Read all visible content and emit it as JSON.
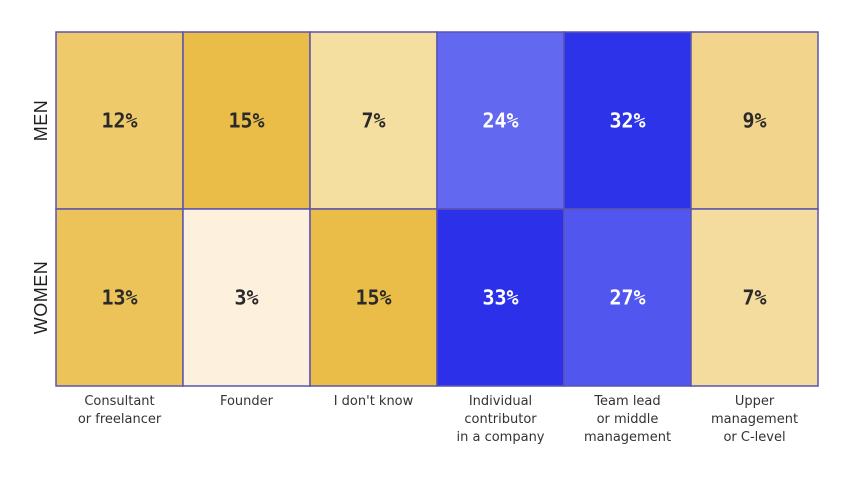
{
  "chart_data": {
    "type": "heatmap",
    "rows": [
      "MEN",
      "WOMEN"
    ],
    "columns": [
      [
        "Consultant",
        "or freelancer"
      ],
      [
        "Founder"
      ],
      [
        "I don't know"
      ],
      [
        "Individual",
        "contributor",
        "in a company"
      ],
      [
        "Team lead",
        "or middle",
        "management"
      ],
      [
        "Upper",
        "management",
        "or C-level"
      ]
    ],
    "values": [
      [
        12,
        15,
        7,
        24,
        32,
        9
      ],
      [
        13,
        3,
        15,
        33,
        27,
        7
      ]
    ],
    "value_labels": [
      [
        "12%",
        "15%",
        "7%",
        "24%",
        "32%",
        "9%"
      ],
      [
        "13%",
        "3%",
        "15%",
        "33%",
        "27%",
        "7%"
      ]
    ],
    "cell_colors": [
      [
        "#efca6a",
        "#e9bd48",
        "#f4dfa0",
        "#6268f0",
        "#2c33e8",
        "#f2d48d"
      ],
      [
        "#ecc358",
        "#fdf1dd",
        "#eabd48",
        "#2c30e9",
        "#5056ee",
        "#f4dc9e"
      ]
    ],
    "label_colors": [
      [
        "#2a2a2a",
        "#2a2a2a",
        "#2a2a2a",
        "#ffffff",
        "#ffffff",
        "#2a2a2a"
      ],
      [
        "#2a2a2a",
        "#2a2a2a",
        "#2a2a2a",
        "#ffffff",
        "#ffffff",
        "#2a2a2a"
      ]
    ],
    "grid_line_color": "#5a55b0"
  }
}
